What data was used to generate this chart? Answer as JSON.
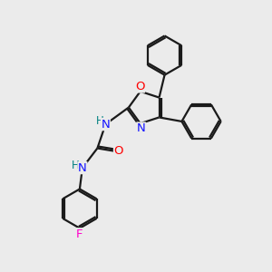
{
  "bg_color": "#ebebeb",
  "bond_color": "#1a1a1a",
  "bond_width": 1.6,
  "atom_colors": {
    "N": "#1414ff",
    "O": "#ff0000",
    "F": "#ff00cc",
    "H": "#008080",
    "C": "#1a1a1a"
  },
  "font_size": 9.5
}
